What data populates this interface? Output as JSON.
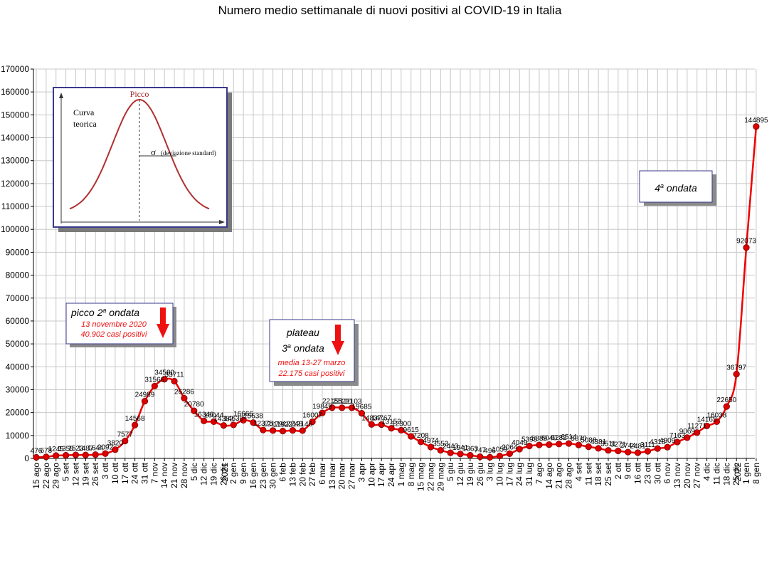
{
  "chart_data": {
    "type": "line",
    "title": "Numero medio settimanale di nuovi positivi al COVID-19 in Italia",
    "xlabel": "",
    "ylabel": "",
    "ylim": [
      0,
      170000
    ],
    "ytick_step": 10000,
    "grid": true,
    "legend": "none",
    "line_color": "#ee0000",
    "marker_color": "#dd0000",
    "categories": [
      "15 ago",
      "22 ago",
      "29 ago",
      "5 set",
      "12 set",
      "19 set",
      "26 set",
      "3 ott",
      "10 ott",
      "17 ott",
      "24 ott",
      "31 ott",
      "7 nov",
      "14 nov",
      "21 nov",
      "28 nov",
      "5 dic",
      "12 dic",
      "19 dic",
      "26 dic",
      "2021 - 2 gen",
      "9 gen",
      "16 gen",
      "23 gen",
      "30 gen",
      "6 feb",
      "13 feb",
      "20 feb",
      "27 feb",
      "6 mar",
      "13 mar",
      "20 mar",
      "27 mar",
      "3 apr",
      "10 apr",
      "17 apr",
      "24 apr",
      "1 mag",
      "8 mag",
      "15 mag",
      "22 mag",
      "29 mag",
      "5 giu",
      "12 giu",
      "19 giu",
      "26 giu",
      "3 lug",
      "10 lug",
      "17 lug",
      "24 lug",
      "31 lug",
      "7 ago",
      "14 ago",
      "21 ago",
      "28 ago",
      "4 set",
      "11 set",
      "18 set",
      "25 set",
      "2 ott",
      "9 ott",
      "16 ott",
      "23 ott",
      "30 ott",
      "6 nov",
      "13 nov",
      "20 nov",
      "27 nov",
      "4 dic",
      "11 dic",
      "18 dic",
      "25 dic",
      "2022 - 1 gen",
      "8 gen"
    ],
    "values": [
      476,
      678,
      1245,
      1355,
      1523,
      1487,
      1644,
      2092,
      3820,
      7577,
      14568,
      24989,
      31566,
      34580,
      33711,
      26286,
      20780,
      16346,
      16044,
      14382,
      14630,
      16666,
      15638,
      12375,
      12179,
      11922,
      12246,
      12146,
      16007,
      19849,
      22155,
      22120,
      22103,
      19685,
      14837,
      14767,
      13153,
      12300,
      9615,
      7208,
      4974,
      3553,
      2443,
      1941,
      1363,
      747,
      496,
      1059,
      2064,
      4049,
      5393,
      5889,
      6040,
      6282,
      6514,
      5870,
      5088,
      4381,
      3511,
      3271,
      2744,
      2481,
      3111,
      4318,
      4909,
      7163,
      9069,
      11271,
      14165,
      16038,
      22650,
      36797,
      92073,
      144895
    ],
    "data_labels": [
      "476",
      "678",
      "1245",
      "1355",
      "1523",
      "1487",
      "1644",
      "2092",
      "3820",
      "7577",
      "14568",
      "24989",
      "31566",
      "34580",
      "33711",
      "26286",
      "20780",
      "16346",
      "16044",
      "14382",
      "14630",
      "16666",
      "15638",
      "12375",
      "12179",
      "11922",
      "12246",
      "12146",
      "16007",
      "19849",
      "22155",
      "22120",
      "22103",
      "19685",
      "14837",
      "14767",
      "13153",
      "12300",
      "9615",
      "7208",
      "4974",
      "3553",
      "2443",
      "1941",
      "1363",
      "747",
      "496",
      "1059",
      "2064",
      "4049",
      "5393",
      "5889",
      "6040",
      "6282",
      "6514",
      "5870",
      "5088",
      "4381",
      "3511",
      "3271",
      "2744",
      "2481",
      "3111",
      "4318",
      "4909",
      "7163",
      "9069",
      "11271",
      "14165",
      "16038",
      "22650",
      "36797",
      "92073",
      "144895"
    ],
    "annotations": {
      "peak2": {
        "line1_a": "picco 2",
        "line1_sup": "a",
        "line1_b": " ondata",
        "line2": "13 novembre 2020",
        "line3": "40.902 casi positivi"
      },
      "plateau3": {
        "line1": "plateau",
        "line2_a": "3",
        "line2_sup": "a",
        "line2_b": " ondata",
        "line3": "media 13-27 marzo",
        "line4": "22.175 casi positivi"
      },
      "wave4": {
        "line1_a": "4",
        "line1_sup": "a",
        "line1_b": " ondata"
      },
      "inset": {
        "peak_label": "Picco",
        "curve_label_1": "Curva",
        "curve_label_2": "teorica",
        "sigma": "σ",
        "sigma_label": "(deviazione standard)"
      },
      "arrow_color": "#ee1111"
    }
  }
}
